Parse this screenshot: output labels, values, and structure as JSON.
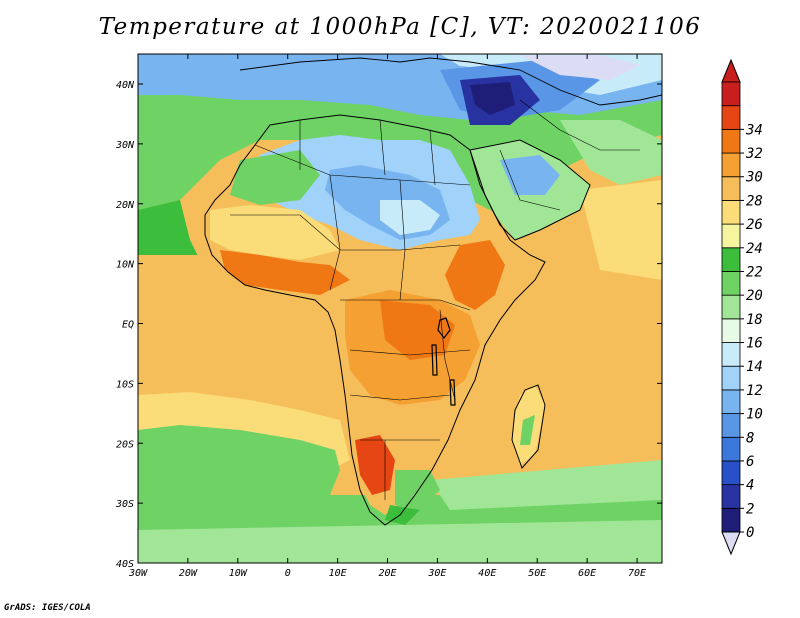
{
  "title": "Temperature at 1000hPa [C], VT: 2020021106",
  "credit": "GrADS: IGES/COLA",
  "lon_labels": [
    "30W",
    "20W",
    "10W",
    "0",
    "10E",
    "20E",
    "30E",
    "40E",
    "50E",
    "60E",
    "70E"
  ],
  "lat_labels": [
    "40N",
    "30N",
    "20N",
    "10N",
    "EQ",
    "10S",
    "20S",
    "30S",
    "40S"
  ],
  "colorbar": {
    "labels": [
      "0",
      "2",
      "4",
      "6",
      "8",
      "10",
      "12",
      "14",
      "16",
      "18",
      "20",
      "22",
      "24",
      "26",
      "28",
      "30",
      "32",
      "34"
    ],
    "colors": [
      "#1e1e78",
      "#2832a0",
      "#2850c8",
      "#3c78dc",
      "#5a96e6",
      "#78b4f0",
      "#a0d2fa",
      "#c8ebfa",
      "#e6fae6",
      "#a0e696",
      "#6ed264",
      "#3cbe3c",
      "#f5f5a0",
      "#fadc78",
      "#f5be5a",
      "#f5a032",
      "#f07814",
      "#e64614",
      "#c81e1e"
    ],
    "under_color": "#dcdcf5"
  }
}
